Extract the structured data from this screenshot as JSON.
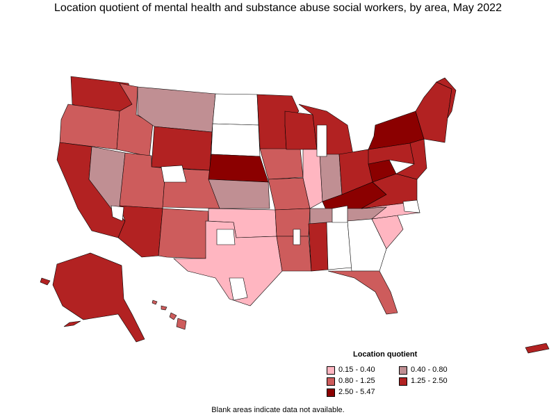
{
  "title": "Location quotient of mental health and substance abuse social workers, by area, May 2022",
  "legend": {
    "title": "Location quotient",
    "items": [
      {
        "label": "0.15 - 0.40",
        "color": "#ffb6c1"
      },
      {
        "label": "0.40 - 0.80",
        "color": "#c08f93"
      },
      {
        "label": "0.80 - 1.25",
        "color": "#cd5c5c"
      },
      {
        "label": "1.25 - 2.50",
        "color": "#b22222"
      },
      {
        "label": "2.50 - 5.47",
        "color": "#8b0000"
      }
    ]
  },
  "footnote": "Blank areas indicate data not available.",
  "palette": {
    "q1": "#ffb6c1",
    "q2": "#c08f93",
    "q3": "#cd5c5c",
    "q4": "#b22222",
    "q5": "#8b0000",
    "blank": "#ffffff"
  }
}
